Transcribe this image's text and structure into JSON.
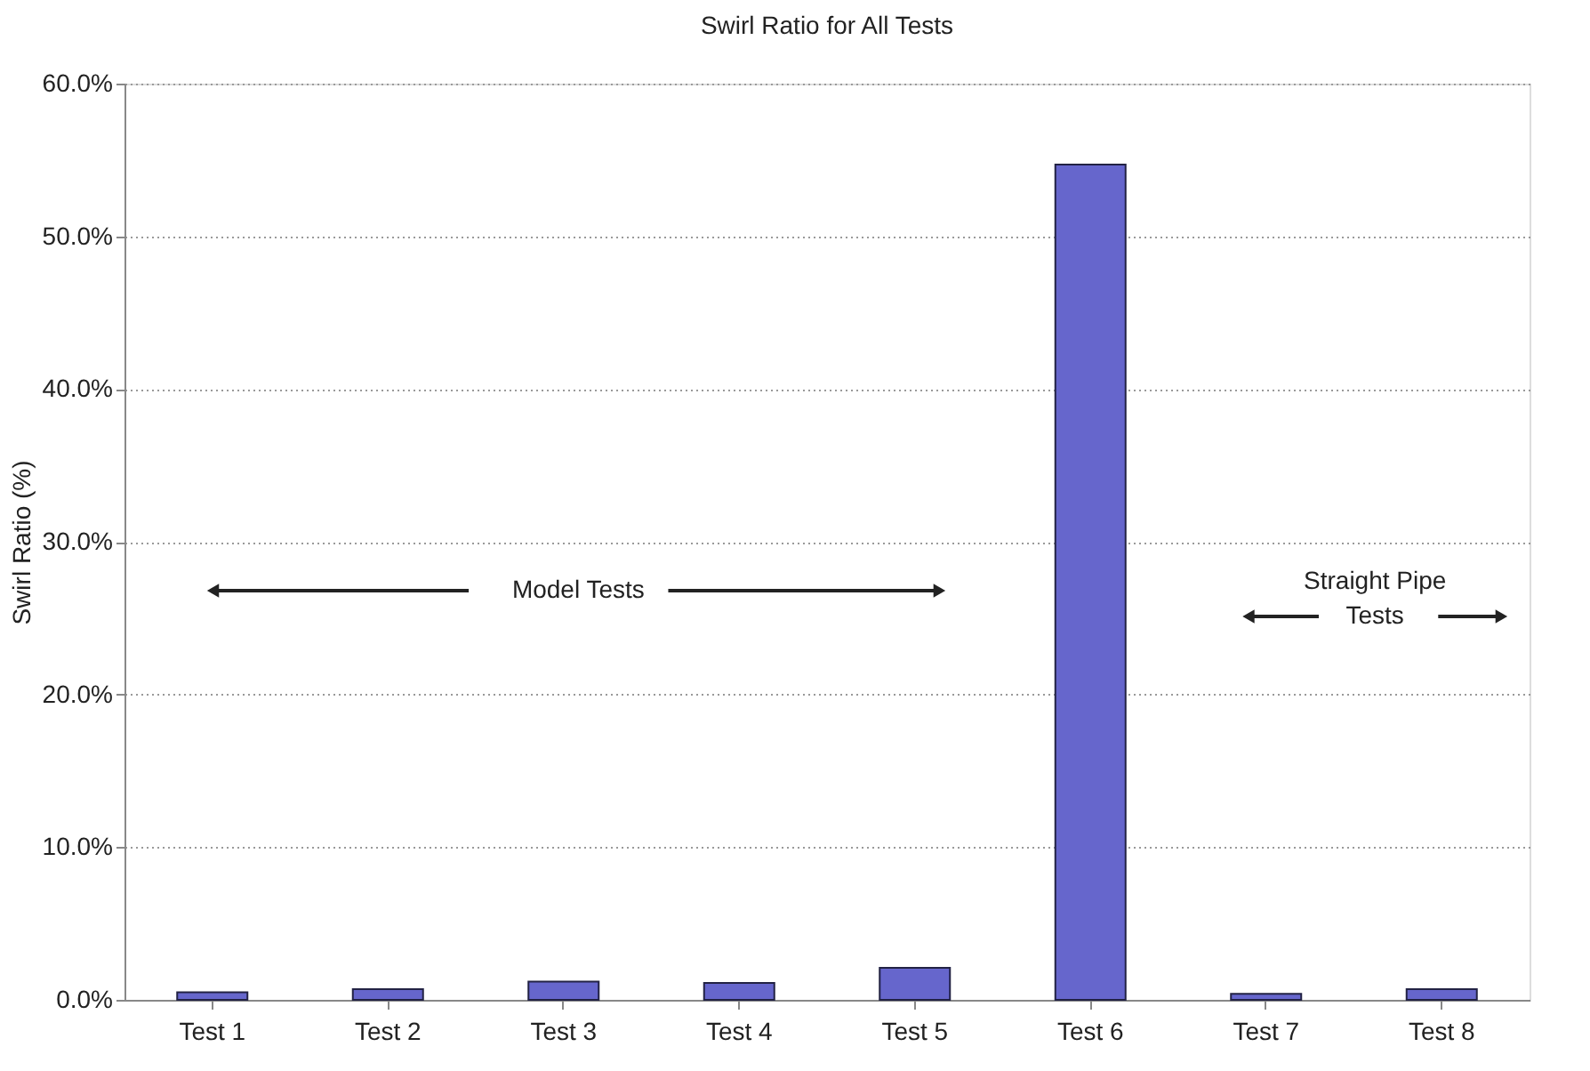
{
  "chart_data": {
    "type": "bar",
    "title": "Swirl Ratio for All Tests",
    "ylabel": "Swirl Ratio (%)",
    "categories": [
      "Test 1",
      "Test 2",
      "Test 3",
      "Test 4",
      "Test 5",
      "Test 6",
      "Test 7",
      "Test 8"
    ],
    "values": [
      0.5,
      0.7,
      1.2,
      1.1,
      2.1,
      54.7,
      0.4,
      0.7
    ],
    "color": "#6666cc",
    "ylim": [
      0,
      60
    ],
    "yticks": [
      {
        "value": 0,
        "label": "0.0%"
      },
      {
        "value": 10,
        "label": "10.0%"
      },
      {
        "value": 20,
        "label": "20.0%"
      },
      {
        "value": 30,
        "label": "30.0%"
      },
      {
        "value": 40,
        "label": "40.0%"
      },
      {
        "value": 50,
        "label": "50.0%"
      },
      {
        "value": 60,
        "label": "60.0%"
      }
    ],
    "grid": "y",
    "annotations": [
      "Model Tests",
      "Straight Pipe Tests"
    ]
  }
}
